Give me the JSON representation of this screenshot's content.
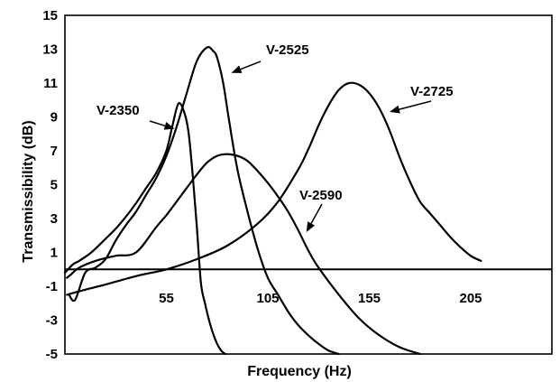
{
  "chart_data": {
    "type": "line",
    "title": "",
    "xlabel": "Frequency (Hz)",
    "ylabel": "Transmissibility (dB)",
    "xlim": [
      5,
      245
    ],
    "ylim": [
      -5,
      15
    ],
    "xticks": [
      55,
      105,
      155,
      205
    ],
    "yticks": [
      -5,
      -3,
      -1,
      1,
      3,
      5,
      7,
      9,
      11,
      13,
      15
    ],
    "reference_line": 0,
    "grid": false,
    "series": [
      {
        "name": "V-2350",
        "x": [
          5,
          9,
          12,
          18,
          25,
          30,
          35,
          40,
          45,
          50,
          55,
          58,
          61,
          64,
          66,
          68,
          70,
          72,
          74,
          76,
          78,
          80,
          82,
          84
        ],
        "y": [
          -0.2,
          0.3,
          0.5,
          1.0,
          1.8,
          2.4,
          3.1,
          3.9,
          4.8,
          5.7,
          7.0,
          8.5,
          9.8,
          9.2,
          8.0,
          5.5,
          2.5,
          -0.8,
          -2.0,
          -3.0,
          -3.8,
          -4.4,
          -4.8,
          -5.0
        ]
      },
      {
        "name": "V-2525",
        "x": [
          7,
          10,
          15,
          20,
          25,
          30,
          35,
          40,
          45,
          50,
          55,
          60,
          65,
          70,
          75,
          78,
          80,
          83,
          86,
          90,
          95,
          100,
          105,
          110,
          115,
          120,
          125,
          130,
          135,
          140
        ],
        "y": [
          -1.5,
          -1.8,
          -0.2,
          0.1,
          0.6,
          1.7,
          2.6,
          3.4,
          4.4,
          5.4,
          6.7,
          8.4,
          10.4,
          12.3,
          13.1,
          12.9,
          12.5,
          11.0,
          8.7,
          5.9,
          3.4,
          1.2,
          -0.5,
          -1.5,
          -2.5,
          -3.3,
          -3.9,
          -4.4,
          -4.8,
          -5.0
        ]
      },
      {
        "name": "V-2590",
        "x": [
          6,
          8,
          12,
          20,
          30,
          40,
          50,
          55,
          60,
          65,
          70,
          75,
          80,
          85,
          90,
          95,
          100,
          105,
          110,
          115,
          120,
          125,
          130,
          140,
          150,
          160,
          170,
          180
        ],
        "y": [
          -0.5,
          -0.3,
          0.1,
          0.5,
          0.8,
          1.0,
          2.5,
          3.2,
          4.0,
          4.8,
          5.6,
          6.3,
          6.7,
          6.8,
          6.7,
          6.4,
          5.8,
          5.1,
          4.3,
          3.4,
          2.3,
          1.1,
          0.1,
          -1.5,
          -2.9,
          -3.9,
          -4.6,
          -5.0
        ]
      },
      {
        "name": "V-2725",
        "x": [
          6,
          15,
          25,
          40,
          55,
          70,
          85,
          100,
          110,
          120,
          125,
          130,
          135,
          140,
          145,
          150,
          155,
          160,
          165,
          170,
          175,
          180,
          185,
          190,
          195,
          200,
          205,
          210
        ],
        "y": [
          -1.5,
          -1.2,
          -0.9,
          -0.4,
          0.0,
          0.6,
          1.4,
          2.7,
          4.0,
          5.9,
          7.1,
          8.5,
          9.7,
          10.6,
          11.0,
          10.9,
          10.4,
          9.5,
          8.2,
          6.6,
          5.2,
          4.0,
          3.3,
          2.6,
          1.9,
          1.3,
          0.8,
          0.5
        ]
      }
    ],
    "series_labels": [
      {
        "text": "V-2350",
        "arrow_to": [
          59,
          8.3
        ]
      },
      {
        "text": "V-2525",
        "arrow_to": [
          87,
          11.6
        ]
      },
      {
        "text": "V-2590",
        "arrow_to": [
          124,
          2.2
        ]
      },
      {
        "text": "V-2725",
        "arrow_to": [
          165,
          9.3
        ]
      }
    ]
  }
}
